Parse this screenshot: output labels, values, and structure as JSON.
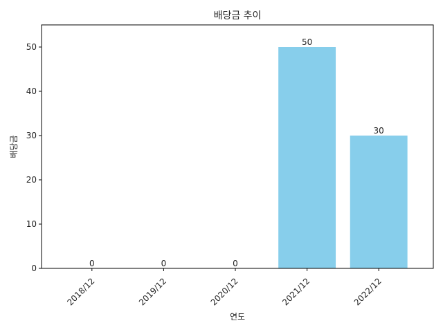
{
  "chart_data": {
    "type": "bar",
    "title": "배당금 추이",
    "xlabel": "연도",
    "ylabel": "배당금",
    "categories": [
      "2018/12",
      "2019/12",
      "2020/12",
      "2021/12",
      "2022/12"
    ],
    "values": [
      0,
      0,
      0,
      50,
      30
    ],
    "ylim": [
      0,
      55
    ],
    "yticks": [
      0,
      10,
      20,
      30,
      40,
      50
    ],
    "bar_color": "#87ceeb",
    "grid": false,
    "legend": "none"
  }
}
